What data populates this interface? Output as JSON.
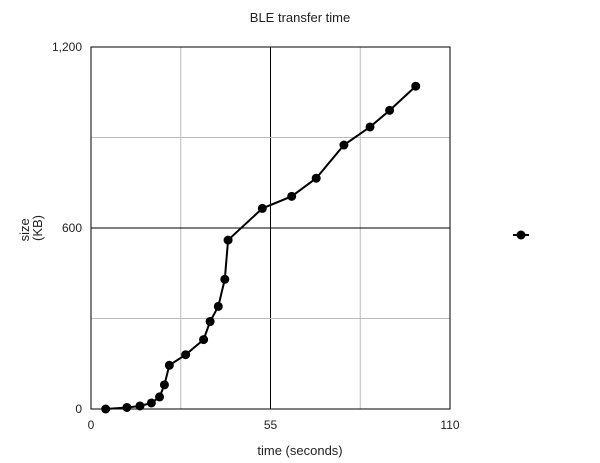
{
  "chart_data": {
    "type": "line",
    "title": "BLE transfer time",
    "xlabel": "time (seconds)",
    "ylabel": "size (KB)",
    "xlim": [
      0,
      110
    ],
    "ylim": [
      0,
      1200
    ],
    "x_ticks": [
      0,
      55,
      110
    ],
    "x_tick_labels": [
      "0",
      "55",
      "110"
    ],
    "y_ticks": [
      0,
      600,
      1200
    ],
    "y_tick_labels": [
      "0",
      "600",
      "1,200"
    ],
    "grid": true,
    "legend": "right",
    "colors": {
      "series": "#000000",
      "major_grid": "#000000",
      "minor_grid": "#bbbbbb"
    },
    "series": [
      {
        "x": [
          4.5,
          11,
          15,
          18.5,
          21,
          22.5,
          24,
          29,
          34.5,
          36.5,
          39,
          41,
          42,
          52.5,
          61.5,
          69,
          77.5,
          85.5,
          91.5,
          99.5
        ],
        "y": [
          0,
          5,
          10,
          20,
          40,
          80,
          145,
          180,
          230,
          290,
          340,
          430,
          560,
          665,
          705,
          765,
          875,
          935,
          990,
          1070
        ]
      }
    ]
  }
}
